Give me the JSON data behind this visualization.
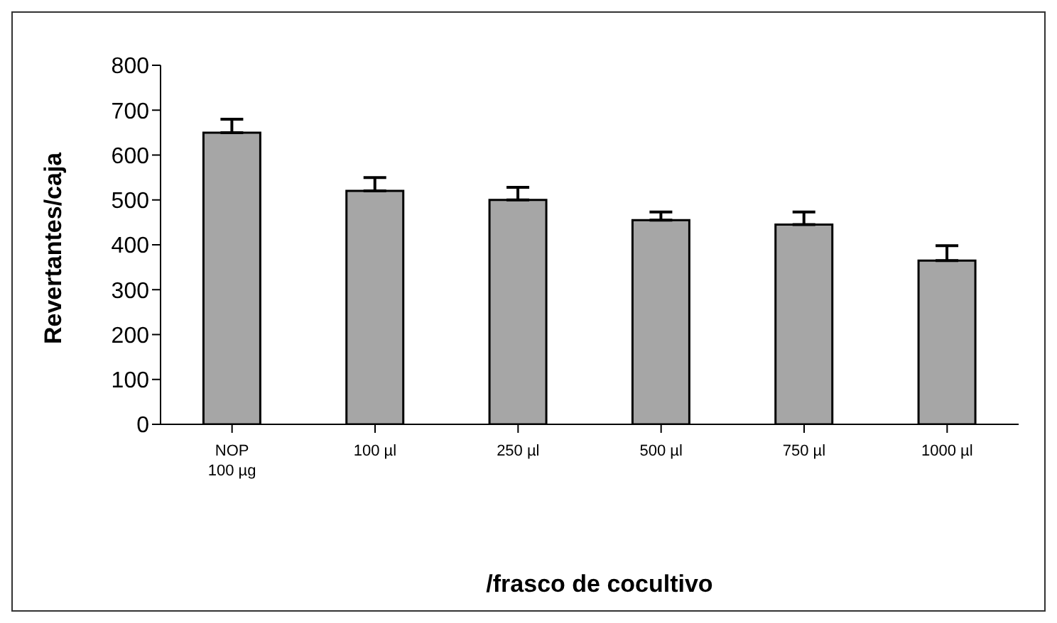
{
  "chart_data": {
    "type": "bar",
    "xlabel": "/frasco de cocultivo",
    "ylabel": "Revertantes/caja",
    "categories": [
      "NOP\n100 µg",
      "100 µl",
      "250 µl",
      "500 µl",
      "750 µl",
      "1000 µl"
    ],
    "values": [
      650,
      520,
      500,
      455,
      445,
      365
    ],
    "errors": [
      [
        650,
        680
      ],
      [
        520,
        550
      ],
      [
        500,
        528
      ],
      [
        455,
        473
      ],
      [
        445,
        473
      ],
      [
        365,
        398
      ]
    ],
    "color": "#a6a6a6",
    "ylim": [
      0,
      800
    ],
    "yticks": [
      0,
      100,
      200,
      300,
      400,
      500,
      600,
      700,
      800
    ],
    "grid": false
  }
}
